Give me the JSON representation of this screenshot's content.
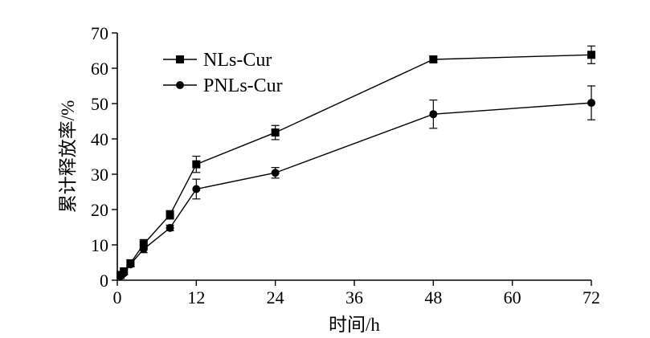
{
  "chart_data": {
    "type": "line",
    "title": "",
    "xlabel": "时间/h",
    "ylabel": "累计释放率/%",
    "xlim": [
      0,
      72
    ],
    "ylim": [
      0,
      70
    ],
    "xticks": [
      0,
      12,
      24,
      36,
      48,
      60,
      72
    ],
    "yticks": [
      0,
      10,
      20,
      30,
      40,
      50,
      60,
      70
    ],
    "grid": false,
    "legend_position": "top-left",
    "series": [
      {
        "name": "NLs-Cur",
        "marker": "square",
        "color": "#000000",
        "points": [
          {
            "x": 0.5,
            "y": 1.5,
            "err": 0.5
          },
          {
            "x": 1,
            "y": 2.5,
            "err": 0.6
          },
          {
            "x": 2,
            "y": 4.8,
            "err": 0.8
          },
          {
            "x": 4,
            "y": 10.2,
            "err": 1.3
          },
          {
            "x": 8,
            "y": 18.5,
            "err": 1.2
          },
          {
            "x": 12,
            "y": 32.8,
            "err": 2.3
          },
          {
            "x": 24,
            "y": 41.8,
            "err": 2.0
          },
          {
            "x": 48,
            "y": 62.5,
            "err": 0.8
          },
          {
            "x": 72,
            "y": 63.8,
            "err": 2.5
          }
        ]
      },
      {
        "name": "PNLs-Cur",
        "marker": "circle",
        "color": "#000000",
        "points": [
          {
            "x": 0.5,
            "y": 1.2,
            "err": 0.4
          },
          {
            "x": 1,
            "y": 2.0,
            "err": 0.5
          },
          {
            "x": 2,
            "y": 4.5,
            "err": 0.7
          },
          {
            "x": 4,
            "y": 8.8,
            "err": 1.0
          },
          {
            "x": 8,
            "y": 14.8,
            "err": 0.8
          },
          {
            "x": 12,
            "y": 25.8,
            "err": 2.8
          },
          {
            "x": 24,
            "y": 30.4,
            "err": 1.5
          },
          {
            "x": 48,
            "y": 47.0,
            "err": 4.0
          },
          {
            "x": 72,
            "y": 50.2,
            "err": 4.8
          }
        ]
      }
    ]
  }
}
